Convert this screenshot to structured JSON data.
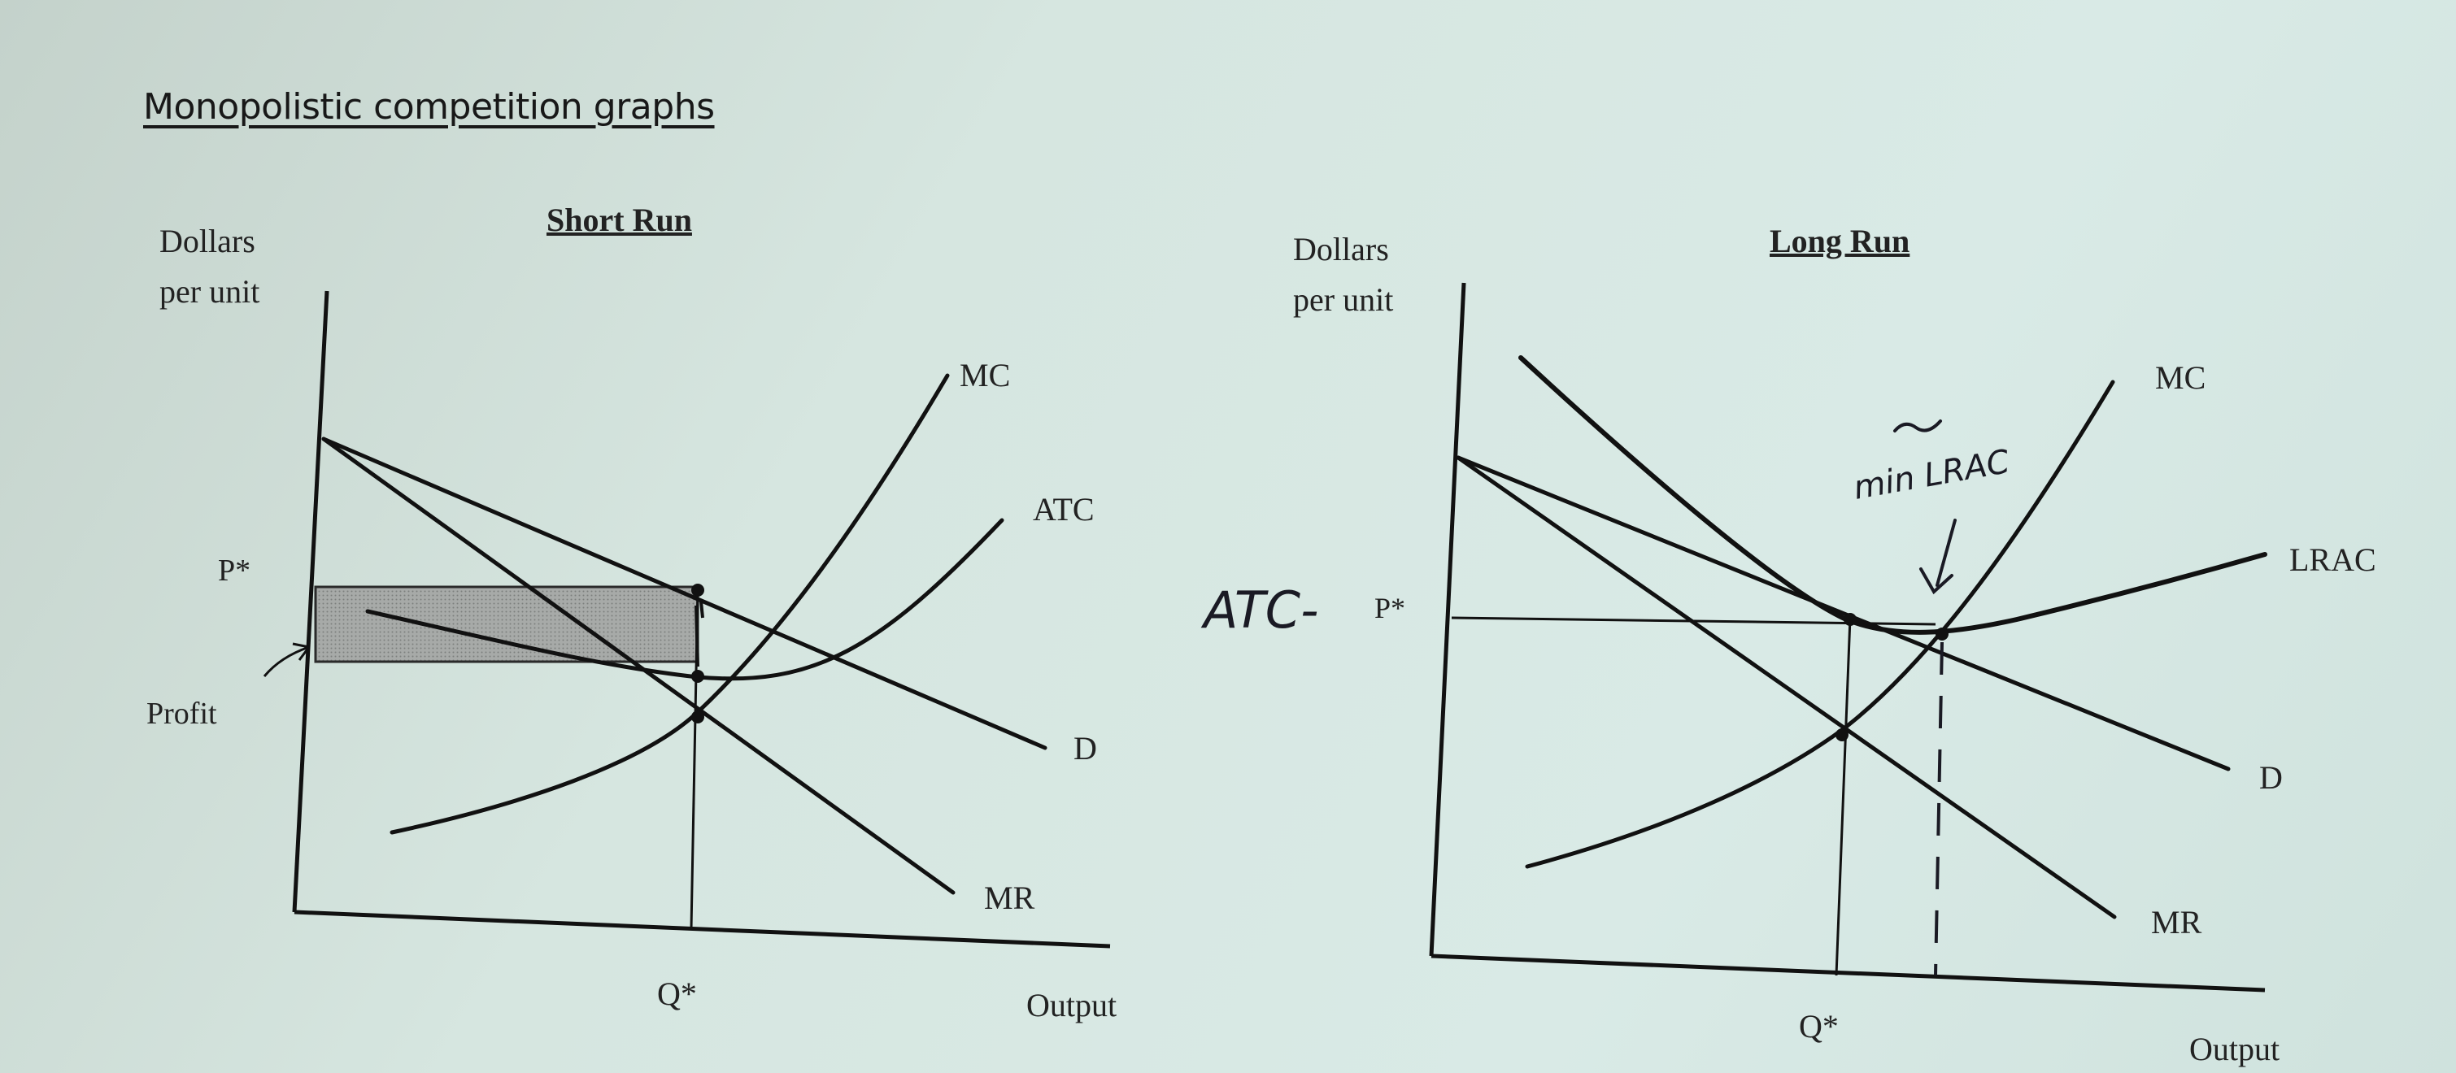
{
  "page": {
    "title": "Monopolistic competition graphs"
  },
  "short_run": {
    "title": "Short Run",
    "y_axis_label_1": "Dollars",
    "y_axis_label_2": "per unit",
    "x_axis_label": "Output",
    "price_label": "P*",
    "quantity_label": "Q*",
    "profit_label": "Profit",
    "curves": {
      "mc": "MC",
      "atc": "ATC",
      "demand": "D",
      "mr": "MR"
    }
  },
  "long_run": {
    "title": "Long Run",
    "y_axis_label_1": "Dollars",
    "y_axis_label_2": "per unit",
    "x_axis_label": "Output",
    "price_label": "P*",
    "quantity_label": "Q*",
    "curves": {
      "mc": "MC",
      "lrac": "LRAC",
      "demand": "D",
      "mr": "MR"
    },
    "handwritten": {
      "left_note": "ATC-",
      "top_note": "min LRAC"
    }
  },
  "colors": {
    "ink": "#1c1c1c",
    "shade": "#9a9a9a",
    "paper": "#d6e6e0"
  }
}
